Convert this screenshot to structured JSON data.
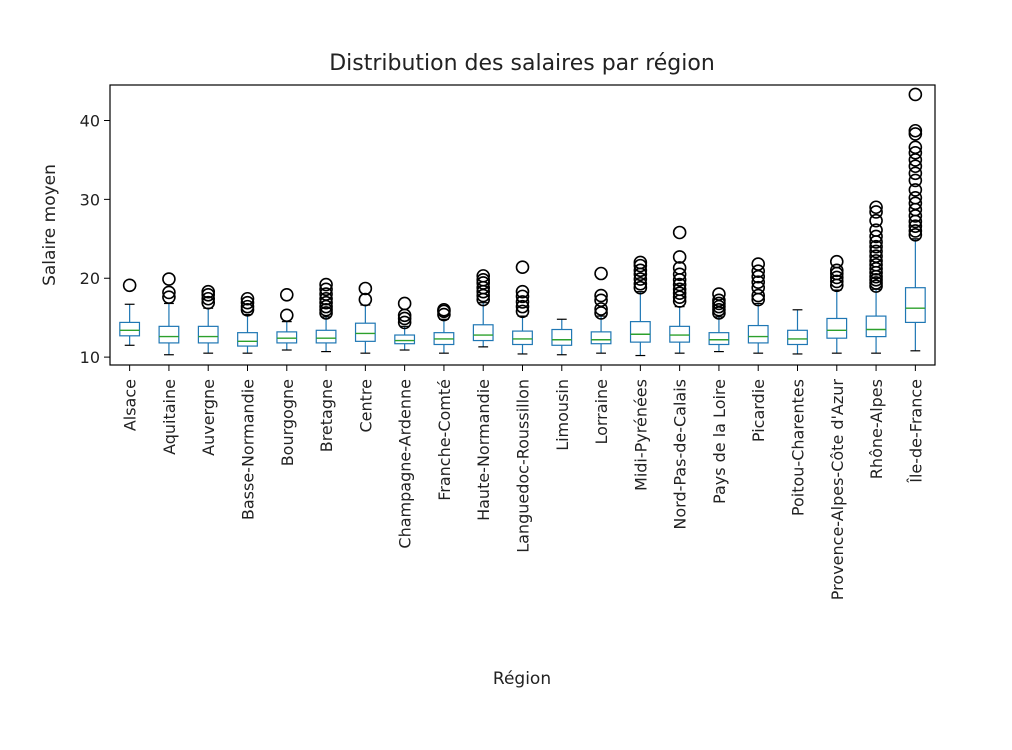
{
  "chart_data": {
    "type": "box",
    "title": "Distribution des salaires par région",
    "xlabel": "Région",
    "ylabel": "Salaire moyen",
    "ylim": [
      9,
      44.5
    ],
    "yticks": [
      10,
      20,
      30,
      40
    ],
    "grid": false,
    "colors": {
      "box": "#1f77b4",
      "median": "#2ca02c",
      "flier": "#000000",
      "axis": "#000000"
    },
    "categories": [
      "Alsace",
      "Aquitaine",
      "Auvergne",
      "Basse-Normandie",
      "Bourgogne",
      "Bretagne",
      "Centre",
      "Champagne-Ardenne",
      "Franche-Comté",
      "Haute-Normandie",
      "Languedoc-Roussillon",
      "Limousin",
      "Lorraine",
      "Midi-Pyrénées",
      "Nord-Pas-de-Calais",
      "Pays de la Loire",
      "Picardie",
      "Poitou-Charentes",
      "Provence-Alpes-Côte d'Azur",
      "Rhône-Alpes",
      "Île-de-France"
    ],
    "boxes": [
      {
        "whislo": 11.5,
        "q1": 12.7,
        "med": 13.4,
        "q3": 14.4,
        "whishi": 16.7,
        "fliers": [
          19.1
        ]
      },
      {
        "whislo": 10.3,
        "q1": 11.8,
        "med": 12.6,
        "q3": 13.9,
        "whishi": 16.8,
        "fliers": [
          17.6,
          18.2,
          19.9
        ]
      },
      {
        "whislo": 10.5,
        "q1": 11.8,
        "med": 12.6,
        "q3": 13.9,
        "whishi": 16.2,
        "fliers": [
          16.9,
          17.4,
          17.9,
          18.3
        ]
      },
      {
        "whislo": 10.5,
        "q1": 11.4,
        "med": 12.0,
        "q3": 13.1,
        "whishi": 15.4,
        "fliers": [
          16.0,
          16.4,
          16.9,
          17.4
        ]
      },
      {
        "whislo": 10.9,
        "q1": 11.8,
        "med": 12.4,
        "q3": 13.2,
        "whishi": 14.5,
        "fliers": [
          15.3,
          17.9
        ]
      },
      {
        "whislo": 10.7,
        "q1": 11.8,
        "med": 12.4,
        "q3": 13.4,
        "whishi": 15.1,
        "fliers": [
          15.6,
          16.0,
          16.4,
          16.9,
          17.4,
          18.0,
          18.6,
          19.2
        ]
      },
      {
        "whislo": 10.5,
        "q1": 12.0,
        "med": 13.0,
        "q3": 14.3,
        "whishi": 16.6,
        "fliers": [
          17.3,
          18.7
        ]
      },
      {
        "whislo": 10.9,
        "q1": 11.7,
        "med": 12.1,
        "q3": 12.8,
        "whishi": 13.9,
        "fliers": [
          14.4,
          14.9,
          15.3,
          16.8
        ]
      },
      {
        "whislo": 10.5,
        "q1": 11.6,
        "med": 12.3,
        "q3": 13.1,
        "whishi": 14.8,
        "fliers": [
          15.4,
          15.8,
          16.0
        ]
      },
      {
        "whislo": 11.3,
        "q1": 12.1,
        "med": 12.8,
        "q3": 14.1,
        "whishi": 16.9,
        "fliers": [
          17.3,
          17.8,
          18.3,
          18.8,
          19.4,
          19.8,
          20.3
        ]
      },
      {
        "whislo": 10.4,
        "q1": 11.6,
        "med": 12.3,
        "q3": 13.3,
        "whishi": 15.2,
        "fliers": [
          15.8,
          16.4,
          17.0,
          17.7,
          18.3,
          21.4
        ]
      },
      {
        "whislo": 10.3,
        "q1": 11.5,
        "med": 12.2,
        "q3": 13.5,
        "whishi": 14.8,
        "fliers": []
      },
      {
        "whislo": 10.5,
        "q1": 11.7,
        "med": 12.2,
        "q3": 13.2,
        "whishi": 15.2,
        "fliers": [
          15.6,
          16.1,
          17.2,
          17.8,
          20.6
        ]
      },
      {
        "whislo": 10.2,
        "q1": 11.9,
        "med": 12.9,
        "q3": 14.5,
        "whishi": 18.3,
        "fliers": [
          18.8,
          19.3,
          19.9,
          20.5,
          21.0,
          21.6,
          22.0
        ]
      },
      {
        "whislo": 10.5,
        "q1": 11.9,
        "med": 12.8,
        "q3": 13.9,
        "whishi": 16.4,
        "fliers": [
          17.1,
          17.6,
          18.1,
          18.6,
          19.2,
          19.8,
          20.5,
          21.3,
          22.7,
          25.8
        ]
      },
      {
        "whislo": 10.7,
        "q1": 11.6,
        "med": 12.2,
        "q3": 13.1,
        "whishi": 15.1,
        "fliers": [
          15.6,
          16.0,
          16.4,
          16.8,
          17.2,
          18.0
        ]
      },
      {
        "whislo": 10.5,
        "q1": 11.8,
        "med": 12.6,
        "q3": 14.0,
        "whishi": 16.8,
        "fliers": [
          17.3,
          17.8,
          18.8,
          19.5,
          20.2,
          20.9,
          21.8
        ]
      },
      {
        "whislo": 10.4,
        "q1": 11.6,
        "med": 12.3,
        "q3": 13.4,
        "whishi": 16.0,
        "fliers": []
      },
      {
        "whislo": 10.5,
        "q1": 12.4,
        "med": 13.4,
        "q3": 14.9,
        "whishi": 18.5,
        "fliers": [
          19.1,
          19.6,
          20.1,
          20.6,
          21.0,
          22.1
        ]
      },
      {
        "whislo": 10.5,
        "q1": 12.6,
        "med": 13.5,
        "q3": 15.2,
        "whishi": 18.6,
        "fliers": [
          19.0,
          19.4,
          19.8,
          20.2,
          20.7,
          21.2,
          21.7,
          22.2,
          22.8,
          23.4,
          24.0,
          24.6,
          25.3,
          26.1,
          27.3,
          28.4,
          29.0
        ]
      },
      {
        "whislo": 10.8,
        "q1": 14.4,
        "med": 16.2,
        "q3": 18.8,
        "whishi": 25.0,
        "fliers": [
          25.5,
          26.0,
          26.6,
          27.2,
          27.9,
          28.7,
          29.5,
          30.2,
          31.2,
          32.4,
          33.3,
          34.2,
          35.0,
          35.9,
          36.6,
          38.3,
          38.7,
          43.3
        ]
      }
    ]
  }
}
